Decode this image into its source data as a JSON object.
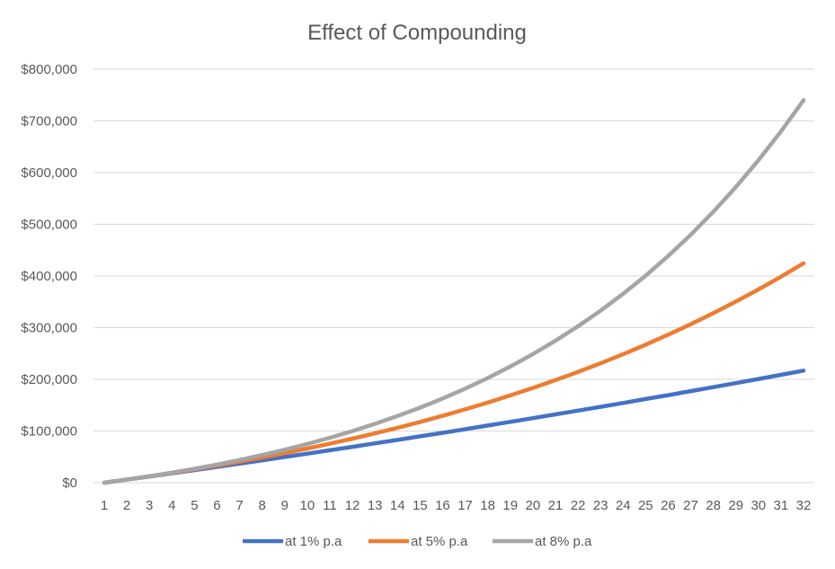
{
  "chart_data": {
    "type": "line",
    "title": "Effect of Compounding",
    "xlabel": "",
    "ylabel": "",
    "x": [
      1,
      2,
      3,
      4,
      5,
      6,
      7,
      8,
      9,
      10,
      11,
      12,
      13,
      14,
      15,
      16,
      17,
      18,
      19,
      20,
      21,
      22,
      23,
      24,
      25,
      26,
      27,
      28,
      29,
      30,
      31,
      32
    ],
    "y_ticks": [
      "$0",
      "$100,000",
      "$200,000",
      "$300,000",
      "$400,000",
      "$500,000",
      "$600,000",
      "$700,000",
      "$800,000"
    ],
    "ylim": [
      0,
      800000
    ],
    "grid": true,
    "legend_position": "bottom",
    "series": [
      {
        "name": "at 1% p.a",
        "color": "#4472C4",
        "values": [
          0,
          6000,
          12060,
          18181,
          24362,
          30606,
          36912,
          43281,
          49714,
          56211,
          62773,
          69401,
          76095,
          82856,
          89684,
          96581,
          103547,
          110582,
          117688,
          124865,
          132114,
          139435,
          146830,
          154298,
          161841,
          169459,
          177154,
          184925,
          192775,
          200702,
          208709,
          216796
        ]
      },
      {
        "name": "at 5% p.a",
        "color": "#ED7D31",
        "values": [
          0,
          6000,
          12300,
          18915,
          25861,
          33154,
          40812,
          48852,
          57295,
          66159,
          75467,
          85241,
          95503,
          106278,
          117592,
          129471,
          141945,
          155042,
          168794,
          183234,
          198396,
          214316,
          231031,
          248583,
          267012,
          286363,
          306681,
          328015,
          350415,
          373936,
          398633,
          424565
        ]
      },
      {
        "name": "at 8% p.a",
        "color": "#A5A5A5",
        "values": [
          0,
          6000,
          12480,
          19478,
          27037,
          35200,
          44016,
          53537,
          63820,
          74925,
          86919,
          99873,
          113863,
          128972,
          145290,
          162913,
          181946,
          202501,
          224701,
          248678,
          274572,
          302537,
          332740,
          365360,
          400589,
          438636,
          479726,
          524105,
          572033,
          623796,
          679699,
          740075
        ]
      }
    ]
  }
}
